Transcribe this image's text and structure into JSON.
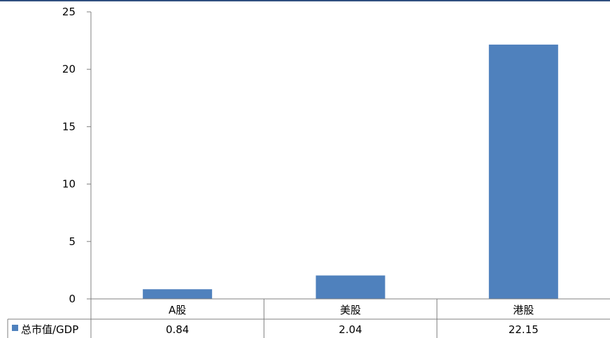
{
  "chart_data": {
    "type": "bar",
    "title": "",
    "xlabel": "",
    "ylabel": "",
    "categories": [
      "A股",
      "美股",
      "港股"
    ],
    "series": [
      {
        "name": "总市值/GDP",
        "values": [
          0.84,
          2.04,
          22.15
        ],
        "value_labels": [
          "0.84",
          "2.04",
          "22.15"
        ]
      }
    ],
    "ylim": [
      0,
      25
    ],
    "yticks": [
      0,
      5,
      10,
      15,
      20,
      25
    ],
    "grid": false,
    "legend": "data-table-left",
    "data_table": true,
    "colors": {
      "bar": "#4f81bd",
      "axis": "#808080",
      "rule": "#2f4f7f"
    }
  }
}
